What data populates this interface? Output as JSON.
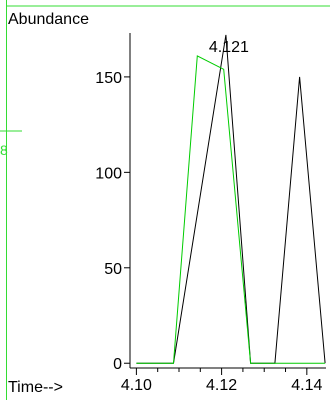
{
  "chart_data": {
    "type": "line",
    "ylabel": "Abundance",
    "xlabel": "Time-->",
    "peak_annotation": "4.121",
    "xlim": [
      4.0985,
      4.1445
    ],
    "ylim": [
      -2.5,
      173
    ],
    "x_ticks": [
      4.1,
      4.12,
      4.14
    ],
    "x_tick_labels": [
      "4.10",
      "4.12",
      "4.14"
    ],
    "y_ticks": [
      0,
      50,
      100,
      150
    ],
    "y_tick_labels": [
      "0",
      "50",
      "100",
      "150"
    ],
    "series": [
      {
        "color": "#000000",
        "x": [
          4.1,
          4.1087,
          4.121,
          4.1268,
          4.1325,
          4.1383,
          4.1443
        ],
        "y": [
          0,
          0,
          172,
          0,
          0,
          150,
          0
        ]
      },
      {
        "color": "#00cc00",
        "x": [
          4.1,
          4.1087,
          4.1143,
          4.1205,
          4.1268,
          4.1443
        ],
        "y": [
          0,
          0,
          161,
          154,
          0,
          0
        ]
      }
    ]
  },
  "decor": {
    "frame_color": "#33dd33",
    "edge_marker": "8"
  }
}
